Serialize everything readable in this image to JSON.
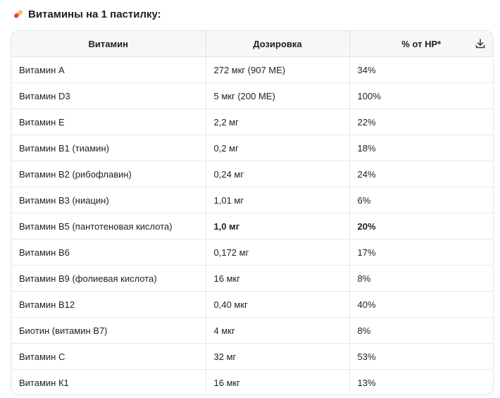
{
  "heading": {
    "icon": "pill-icon",
    "text": "Витамины на 1 пастилку:"
  },
  "table": {
    "download_icon": "download-icon",
    "headers": [
      "Витамин",
      "Дозировка",
      "% от НР*"
    ],
    "rows": [
      {
        "vitamin": "Витамин А",
        "dose": "272 мкг (907 МЕ)",
        "percent": "34%"
      },
      {
        "vitamin": "Витамин D3",
        "dose": "5 мкг (200 МЕ)",
        "percent": "100%"
      },
      {
        "vitamin": "Витамин Е",
        "dose": "2,2 мг",
        "percent": "22%"
      },
      {
        "vitamin": "Витамин В1 (тиамин)",
        "dose": "0,2 мг",
        "percent": "18%"
      },
      {
        "vitamin": "Витамин В2 (рибофлавин)",
        "dose": "0,24 мг",
        "percent": "24%"
      },
      {
        "vitamin": "Витамин В3 (ниацин)",
        "dose": "1,01 мг",
        "percent": "6%"
      },
      {
        "vitamin": "Витамин В5 (пантотеновая кислота)",
        "dose": "1,0 мг",
        "percent": "20%",
        "bold_values": true
      },
      {
        "vitamin": "Витамин В6",
        "dose": "0,172 мг",
        "percent": "17%"
      },
      {
        "vitamin": "Витамин В9 (фолиевая кислота)",
        "dose": "16 мкг",
        "percent": "8%"
      },
      {
        "vitamin": "Витамин В12",
        "dose": "0,40 мкг",
        "percent": "40%"
      },
      {
        "vitamin": "Биотин (витамин В7)",
        "dose": "4 мкг",
        "percent": "8%"
      },
      {
        "vitamin": "Витамин С",
        "dose": "32 мг",
        "percent": "53%"
      },
      {
        "vitamin": "Витамин К1",
        "dose": "16 мкг",
        "percent": "13%"
      }
    ]
  }
}
